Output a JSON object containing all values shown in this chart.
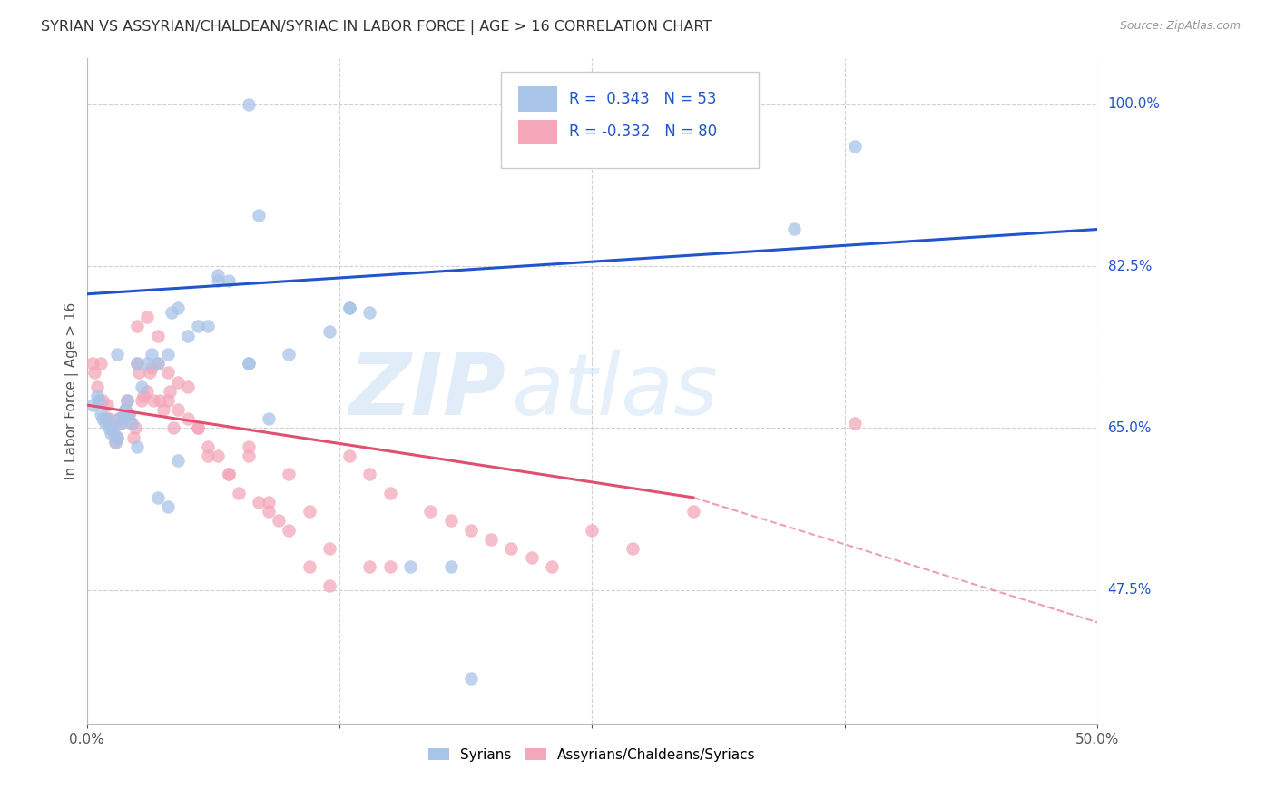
{
  "title": "SYRIAN VS ASSYRIAN/CHALDEAN/SYRIAC IN LABOR FORCE | AGE > 16 CORRELATION CHART",
  "source": "Source: ZipAtlas.com",
  "ylabel": "In Labor Force | Age > 16",
  "xlim": [
    0.0,
    0.5
  ],
  "ylim": [
    0.33,
    1.05
  ],
  "yticks": [
    0.475,
    0.65,
    0.825,
    1.0
  ],
  "ytick_labels": [
    "47.5%",
    "65.0%",
    "82.5%",
    "100.0%"
  ],
  "xticks": [
    0.0,
    0.125,
    0.25,
    0.375,
    0.5
  ],
  "xtick_labels": [
    "0.0%",
    "",
    "",
    "",
    "50.0%"
  ],
  "blue_color": "#a8c4e8",
  "pink_color": "#f4a7b9",
  "blue_line_color": "#2255cc",
  "pink_line_color": "#e05070",
  "watermark_text": "ZIP",
  "watermark_text2": "atlas",
  "legend_label1": "Syrians",
  "legend_label2": "Assyrians/Chaldeans/Syriacs",
  "blue_line_x0": 0.0,
  "blue_line_y0": 0.795,
  "blue_line_x1": 0.5,
  "blue_line_y1": 0.865,
  "pink_line_solid_x0": 0.0,
  "pink_line_solid_y0": 0.675,
  "pink_line_solid_x1": 0.3,
  "pink_line_solid_y1": 0.575,
  "pink_line_dash_x0": 0.3,
  "pink_line_dash_y0": 0.575,
  "pink_line_dash_x1": 0.5,
  "pink_line_dash_y1": 0.44,
  "blue_scatter_x": [
    0.08,
    0.003,
    0.005,
    0.006,
    0.007,
    0.008,
    0.009,
    0.01,
    0.011,
    0.012,
    0.013,
    0.014,
    0.015,
    0.016,
    0.017,
    0.018,
    0.019,
    0.02,
    0.021,
    0.022,
    0.025,
    0.027,
    0.03,
    0.032,
    0.035,
    0.04,
    0.042,
    0.045,
    0.05,
    0.055,
    0.06,
    0.065,
    0.085,
    0.09,
    0.12,
    0.13,
    0.35,
    0.38,
    0.015,
    0.025,
    0.035,
    0.04,
    0.045,
    0.1,
    0.14,
    0.16,
    0.19,
    0.08,
    0.08,
    0.13,
    0.18,
    0.065,
    0.07
  ],
  "blue_scatter_y": [
    1.0,
    0.675,
    0.685,
    0.68,
    0.665,
    0.66,
    0.655,
    0.66,
    0.65,
    0.645,
    0.648,
    0.635,
    0.64,
    0.66,
    0.655,
    0.663,
    0.67,
    0.68,
    0.665,
    0.655,
    0.72,
    0.695,
    0.72,
    0.73,
    0.72,
    0.73,
    0.775,
    0.78,
    0.75,
    0.76,
    0.76,
    0.815,
    0.88,
    0.66,
    0.755,
    0.78,
    0.865,
    0.955,
    0.73,
    0.63,
    0.575,
    0.565,
    0.615,
    0.73,
    0.775,
    0.5,
    0.38,
    0.72,
    0.72,
    0.78,
    0.5,
    0.81,
    0.81
  ],
  "pink_scatter_x": [
    0.003,
    0.004,
    0.005,
    0.006,
    0.007,
    0.008,
    0.009,
    0.01,
    0.011,
    0.012,
    0.013,
    0.014,
    0.015,
    0.016,
    0.017,
    0.018,
    0.019,
    0.02,
    0.021,
    0.022,
    0.023,
    0.024,
    0.025,
    0.026,
    0.027,
    0.028,
    0.03,
    0.031,
    0.032,
    0.033,
    0.035,
    0.036,
    0.038,
    0.04,
    0.041,
    0.043,
    0.045,
    0.05,
    0.055,
    0.06,
    0.065,
    0.07,
    0.075,
    0.08,
    0.085,
    0.09,
    0.095,
    0.1,
    0.11,
    0.12,
    0.13,
    0.14,
    0.15,
    0.17,
    0.18,
    0.19,
    0.2,
    0.21,
    0.22,
    0.23,
    0.25,
    0.27,
    0.3,
    0.025,
    0.03,
    0.035,
    0.04,
    0.045,
    0.05,
    0.055,
    0.06,
    0.07,
    0.08,
    0.09,
    0.1,
    0.11,
    0.12,
    0.14,
    0.15,
    0.38
  ],
  "pink_scatter_y": [
    0.72,
    0.71,
    0.695,
    0.68,
    0.72,
    0.68,
    0.66,
    0.675,
    0.66,
    0.655,
    0.645,
    0.635,
    0.64,
    0.66,
    0.655,
    0.663,
    0.67,
    0.68,
    0.665,
    0.655,
    0.64,
    0.65,
    0.72,
    0.71,
    0.68,
    0.685,
    0.69,
    0.71,
    0.715,
    0.68,
    0.72,
    0.68,
    0.67,
    0.68,
    0.69,
    0.65,
    0.67,
    0.66,
    0.65,
    0.63,
    0.62,
    0.6,
    0.58,
    0.62,
    0.57,
    0.56,
    0.55,
    0.54,
    0.5,
    0.48,
    0.62,
    0.6,
    0.58,
    0.56,
    0.55,
    0.54,
    0.53,
    0.52,
    0.51,
    0.5,
    0.54,
    0.52,
    0.56,
    0.76,
    0.77,
    0.75,
    0.71,
    0.7,
    0.695,
    0.65,
    0.62,
    0.6,
    0.63,
    0.57,
    0.6,
    0.56,
    0.52,
    0.5,
    0.5,
    0.655
  ]
}
